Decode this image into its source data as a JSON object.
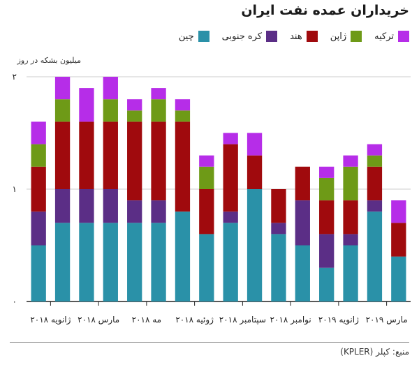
{
  "header": {
    "title": "خریداران عمده نفت ایران"
  },
  "source": "منبع: کپلر (KPLER)",
  "chart_data": {
    "type": "bar",
    "stacked": true,
    "ylabel": "میلیون بشکه در روز",
    "ylim": [
      0,
      2
    ],
    "y_ticks": [
      {
        "value": 0,
        "label": "۰"
      },
      {
        "value": 1,
        "label": "۱"
      },
      {
        "value": 2,
        "label": "۲"
      }
    ],
    "grid": true,
    "legend_position": "top-right",
    "x_tick_labels": [
      {
        "index": 0.5,
        "label": "ژانویه ۲۰۱۸"
      },
      {
        "index": 2.5,
        "label": "مارس ۲۰۱۸"
      },
      {
        "index": 4.5,
        "label": "مه ۲۰۱۸"
      },
      {
        "index": 6.5,
        "label": "ژوئیه ۲۰۱۸"
      },
      {
        "index": 8.5,
        "label": "سپتامبر ۲۰۱۸"
      },
      {
        "index": 10.5,
        "label": "نوامبر ۲۰۱۸"
      },
      {
        "index": 12.5,
        "label": "ژانویه ۲۰۱۹"
      },
      {
        "index": 14.5,
        "label": "مارس ۲۰۱۹"
      }
    ],
    "series": [
      {
        "name": "چین",
        "color": "#2a91a8",
        "values": [
          0.5,
          0.7,
          0.7,
          0.7,
          0.7,
          0.7,
          0.8,
          0.6,
          0.7,
          1.0,
          0.6,
          0.5,
          0.3,
          0.5,
          0.8,
          0.4
        ]
      },
      {
        "name": "کره جنوبی",
        "color": "#5b2e86",
        "values": [
          0.3,
          0.3,
          0.3,
          0.3,
          0.2,
          0.2,
          0.0,
          0.0,
          0.1,
          0.0,
          0.1,
          0.4,
          0.3,
          0.1,
          0.1,
          0.0
        ]
      },
      {
        "name": "هند",
        "color": "#a00a0d",
        "values": [
          0.4,
          0.6,
          0.6,
          0.6,
          0.7,
          0.7,
          0.8,
          0.4,
          0.6,
          0.3,
          0.3,
          0.3,
          0.3,
          0.3,
          0.3,
          0.3
        ]
      },
      {
        "name": "ژاپن",
        "color": "#6e9a17",
        "values": [
          0.2,
          0.2,
          0.0,
          0.2,
          0.1,
          0.2,
          0.1,
          0.2,
          0.0,
          0.0,
          0.0,
          0.0,
          0.2,
          0.3,
          0.1,
          0.0
        ]
      },
      {
        "name": "ترکیه",
        "color": "#b62de8",
        "values": [
          0.2,
          0.2,
          0.3,
          0.2,
          0.1,
          0.1,
          0.1,
          0.1,
          0.1,
          0.2,
          0.0,
          0.0,
          0.1,
          0.1,
          0.1,
          0.2
        ]
      }
    ]
  }
}
